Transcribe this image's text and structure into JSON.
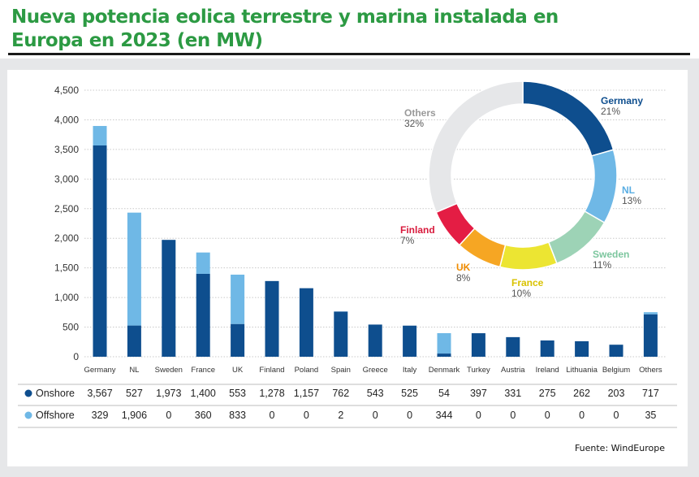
{
  "title": "Nueva potencia eolica terrestre y marina instalada en Europa en 2023 (en MW)",
  "source": "Fuente: WindEurope",
  "colors": {
    "onshore": "#0e4e8e",
    "offshore": "#6fb8e6",
    "title": "#2c9a43"
  },
  "chart_data": [
    {
      "type": "bar",
      "stacked": true,
      "categories": [
        "Germany",
        "NL",
        "Sweden",
        "France",
        "UK",
        "Finland",
        "Poland",
        "Spain",
        "Greece",
        "Italy",
        "Denmark",
        "Turkey",
        "Austria",
        "Ireland",
        "Lithuania",
        "Belgium",
        "Others"
      ],
      "series": [
        {
          "name": "Onshore",
          "color": "#0e4e8e",
          "values": [
            3567,
            527,
            1973,
            1400,
            553,
            1278,
            1157,
            762,
            543,
            525,
            54,
            397,
            331,
            275,
            262,
            203,
            717
          ]
        },
        {
          "name": "Offshore",
          "color": "#6fb8e6",
          "values": [
            329,
            1906,
            0,
            360,
            833,
            0,
            0,
            2,
            0,
            0,
            344,
            0,
            0,
            0,
            0,
            0,
            35
          ]
        }
      ],
      "value_labels": {
        "Onshore": [
          "3,567",
          "527",
          "1,973",
          "1,400",
          "553",
          "1,278",
          "1,157",
          "762",
          "543",
          "525",
          "54",
          "397",
          "331",
          "275",
          "262",
          "203",
          "717"
        ],
        "Offshore": [
          "329",
          "1,906",
          "0",
          "360",
          "833",
          "0",
          "0",
          "2",
          "0",
          "0",
          "344",
          "0",
          "0",
          "0",
          "0",
          "0",
          "35"
        ]
      },
      "ylim": [
        0,
        4500
      ],
      "yticks": [
        0,
        500,
        1000,
        1500,
        2000,
        2500,
        3000,
        3500,
        4000,
        4500
      ],
      "ytick_labels": [
        "0",
        "500",
        "1,000",
        "1,500",
        "2,000",
        "2,500",
        "3,000",
        "3,500",
        "4,000",
        "4,500"
      ],
      "grid": true,
      "legend": "table-below"
    },
    {
      "type": "pie",
      "donut": true,
      "slices": [
        {
          "label": "Germany",
          "pct_label": "21%",
          "value": 21,
          "color": "#0e4e8e",
          "text_color": "#0e4e8e"
        },
        {
          "label": "NL",
          "pct_label": "13%",
          "value": 13,
          "color": "#6fb8e6",
          "text_color": "#5aaee3"
        },
        {
          "label": "Sweden",
          "pct_label": "11%",
          "value": 11,
          "color": "#9dd3b6",
          "text_color": "#7cc69e"
        },
        {
          "label": "France",
          "pct_label": "10%",
          "value": 10,
          "color": "#ece532",
          "text_color": "#d9c200"
        },
        {
          "label": "UK",
          "pct_label": "8%",
          "value": 8,
          "color": "#f6a623",
          "text_color": "#f08c00"
        },
        {
          "label": "Finland",
          "pct_label": "7%",
          "value": 7,
          "color": "#e41d44",
          "text_color": "#d81a3c"
        },
        {
          "label": "Others",
          "pct_label": "32%",
          "value": 32,
          "color": "#e6e7e9",
          "text_color": "#999999"
        }
      ]
    }
  ]
}
